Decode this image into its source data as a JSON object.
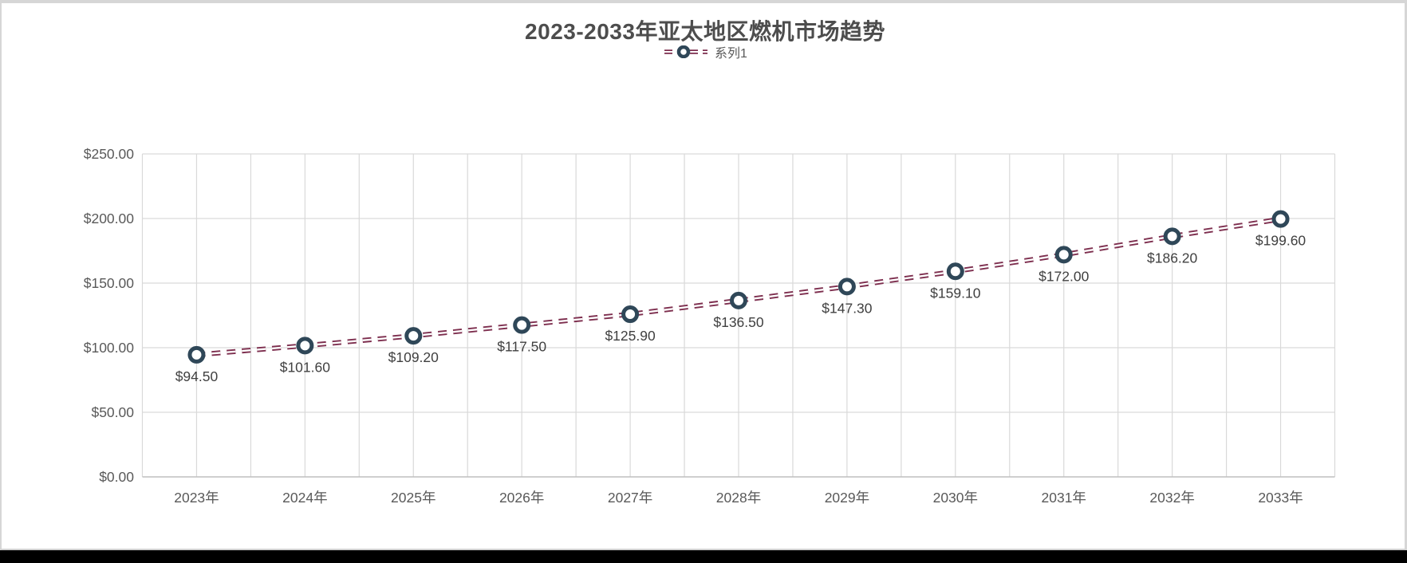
{
  "window": {
    "background_color": "#ffffff",
    "frame_border_color": "#d6d6d6",
    "bottom_bar_color": "#000000"
  },
  "chart_data": {
    "type": "line",
    "title": "2023-2033年亚太地区燃机市场趋势",
    "legend": {
      "position": "top",
      "entries": [
        {
          "label": "系列1",
          "line_color": "#7d2e4e",
          "marker_color": "#2f4758"
        }
      ]
    },
    "categories": [
      "2023年",
      "2024年",
      "2025年",
      "2026年",
      "2027年",
      "2028年",
      "2029年",
      "2030年",
      "2031年",
      "2032年",
      "2033年"
    ],
    "series": [
      {
        "name": "系列1",
        "values": [
          94.5,
          101.6,
          109.2,
          117.5,
          125.9,
          136.5,
          147.3,
          159.1,
          172.0,
          186.2,
          199.6
        ],
        "data_labels": [
          "$94.50",
          "$101.60",
          "$109.20",
          "$117.50",
          "$125.90",
          "$136.50",
          "$147.30",
          "$159.10",
          "$172.00",
          "$186.20",
          "$199.60"
        ]
      }
    ],
    "y_axis": {
      "min": 0,
      "max": 250,
      "major_unit": 50,
      "ticks": [
        {
          "label": "$0.00",
          "value": 0
        },
        {
          "label": "$50.00",
          "value": 50
        },
        {
          "label": "$100.00",
          "value": 100
        },
        {
          "label": "$150.00",
          "value": 150
        },
        {
          "label": "$200.00",
          "value": 200
        },
        {
          "label": "$250.00",
          "value": 250
        }
      ]
    },
    "grid": {
      "horizontal": true,
      "vertical": true,
      "vertical_lines_per_category": 2
    },
    "line_style": {
      "dash": "double-dashed",
      "dash_length": 11,
      "gap_length": 8
    },
    "styles": {
      "line_color": "#7d2e4e",
      "marker_ring_color": "#2f4758",
      "marker_fill": "#ffffff",
      "gridline_color": "#d9d9d9",
      "axis_line_color": "#bfbfbf",
      "title_color": "#4d4d4d",
      "tick_label_color": "#595959",
      "data_label_color": "#404040"
    }
  }
}
